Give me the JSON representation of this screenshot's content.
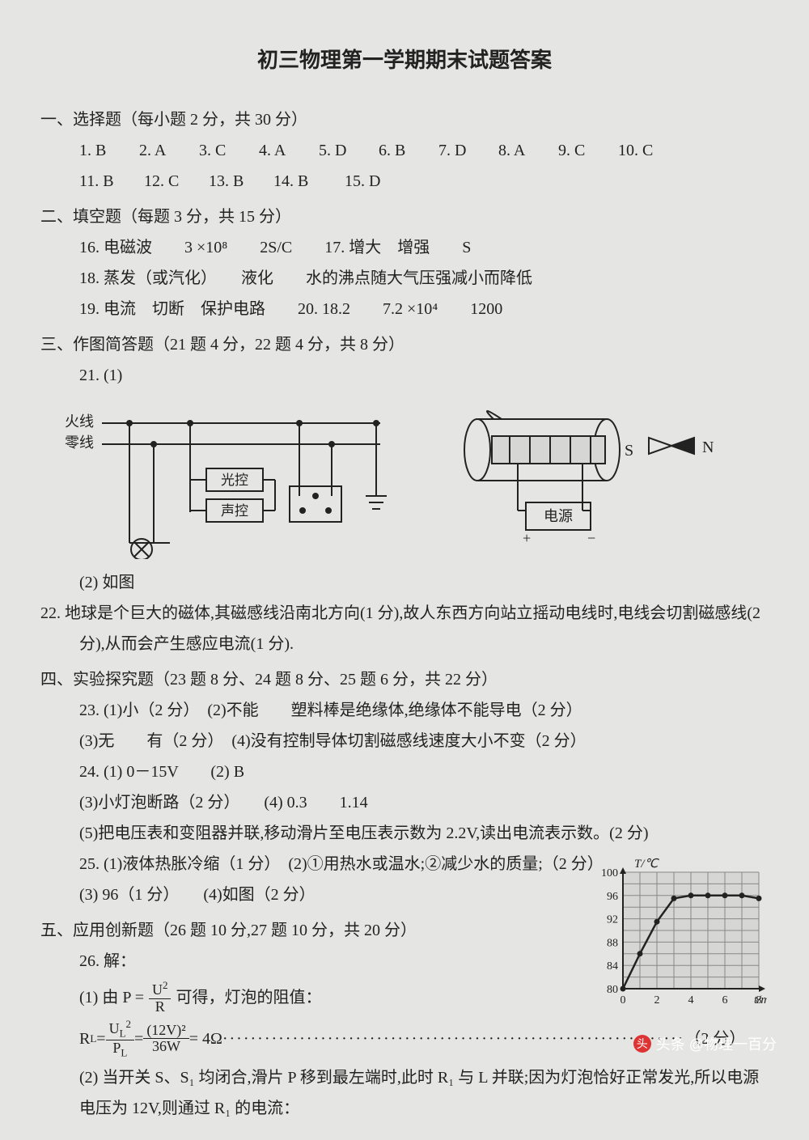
{
  "title": "初三物理第一学期期末试题答案",
  "sec1": {
    "head": "一、选择题（每小题 2 分，共 30 分）",
    "row1": [
      "1. B",
      "2. A",
      "3. C",
      "4. A",
      "5. D",
      "6. B",
      "7. D",
      "8. A",
      "9. C",
      "10. C"
    ],
    "row2": [
      "11. B",
      "12. C",
      "13. B",
      "14. B",
      "15. D"
    ]
  },
  "sec2": {
    "head": "二、填空题（每题 3 分，共 15 分）",
    "l16": "16. 电磁波　　3 ×10⁸　　2S/C　　17. 增大　增强　　S",
    "l18": "18. 蒸发（或汽化）　　液化　　水的沸点随大气压强减小而降低",
    "l19": "19. 电流　切断　保护电路　　20. 18.2　　7.2 ×10⁴　　1200"
  },
  "sec3": {
    "head": "三、作图简答题（21 题 4 分，22 题 4 分，共 8 分）",
    "l21": "21. (1)",
    "l21b": "(2) 如图",
    "l22": "22. 地球是个巨大的磁体,其磁感线沿南北方向(1 分),故人东西方向站立摇动电线时,电线会切割磁感线(2 分),从而会产生感应电流(1 分)."
  },
  "sec4": {
    "head": "四、实验探究题（23 题 8 分、24 题 8 分、25 题 6 分，共 22 分）",
    "l23a": "23. (1)小（2 分）　(2)不能　　塑料棒是绝缘体,绝缘体不能导电（2 分）",
    "l23b": "(3)无　　有（2 分）　(4)没有控制导体切割磁感线速度大小不变（2 分）",
    "l24a": "24. (1) 0－15V　　(2) B",
    "l24b": "(3)小灯泡断路（2 分）　　(4) 0.3　　1.14",
    "l24c": "(5)把电压表和变阻器并联,移动滑片至电压表示数为 2.2V,读出电流表示数。(2 分)",
    "l25a": "25. (1)液体热胀冷缩（1 分）　(2)①用热水或温水;②减少水的质量;（2 分）",
    "l25b": "(3) 96（1 分）　　(4)如图（2 分）"
  },
  "sec5": {
    "head": "五、应用创新题（26 题 10 分,27 题 10 分，共 20 分）",
    "l26": "26. 解：",
    "l26a_pre": "(1) 由 P =",
    "l26a_post": "可得，灯泡的阻值：",
    "eq_lhs": "R",
    "eq_lhs_sub": "L",
    "eq_mid": " = ",
    "eq_frac1_num": "U",
    "eq_frac1_num_sub": "L",
    "eq_frac1_num_sup": "2",
    "eq_frac1_den": "P",
    "eq_frac1_den_sub": "L",
    "eq_frac2_num": "(12V)²",
    "eq_frac2_den": "36W",
    "eq_result": " = 4Ω ",
    "eq_score": "（2 分）",
    "l26b": "(2) 当开关 S、S₁ 均闭合,滑片 P 移到最左端时,此时 R₁ 与 L 并联;因为灯泡恰好正常发光,所以电源电压为 12V,则通过 R₁ 的电流："
  },
  "circuit": {
    "hot": "火线",
    "neutral": "零线",
    "light_ctrl": "光控",
    "sound_ctrl": "声控"
  },
  "magnet": {
    "S": "S",
    "N": "N",
    "power": "电源",
    "plus": "+",
    "minus": "−"
  },
  "graph": {
    "ylabel": "T/℃",
    "xlabel": "t/min",
    "yticks": [
      "80",
      "84",
      "88",
      "92",
      "96",
      "100"
    ],
    "xticks": [
      "0",
      "2",
      "4",
      "6",
      "8"
    ],
    "points": [
      [
        0,
        80
      ],
      [
        1,
        86
      ],
      [
        2,
        91.5
      ],
      [
        3,
        95.5
      ],
      [
        4,
        96
      ],
      [
        5,
        96
      ],
      [
        6,
        96
      ],
      [
        7,
        96
      ],
      [
        8,
        95.5
      ]
    ],
    "line_color": "#222",
    "grid_color": "#888",
    "bg": "#d6d6d4"
  },
  "watermark": "头条 @物理一百分"
}
